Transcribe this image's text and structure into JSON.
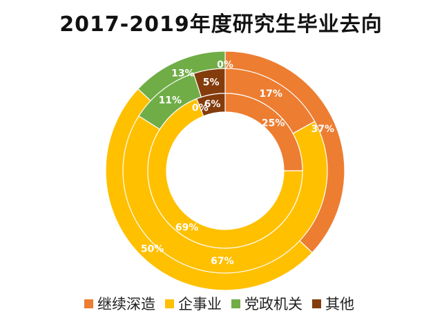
{
  "chart_data": {
    "type": "donut",
    "title": "2017-2019年度研究生毕业去向",
    "categories": [
      "继续深造",
      "企事业",
      "党政机关",
      "其他"
    ],
    "colors": [
      "#ED7D31",
      "#FFC000",
      "#70AD47",
      "#843C0C"
    ],
    "rings": [
      {
        "order": "outer",
        "values": [
          37,
          50,
          13,
          0
        ],
        "labels": [
          "37%",
          "50%",
          "13%",
          "0%"
        ]
      },
      {
        "order": "middle",
        "values": [
          17,
          67,
          11,
          5
        ],
        "labels": [
          "17%",
          "67%",
          "11%",
          "5%"
        ]
      },
      {
        "order": "inner",
        "values": [
          25,
          69,
          0,
          6
        ],
        "labels": [
          "25%",
          "69%",
          "0%",
          "6%"
        ]
      }
    ],
    "legend_position": "bottom"
  }
}
